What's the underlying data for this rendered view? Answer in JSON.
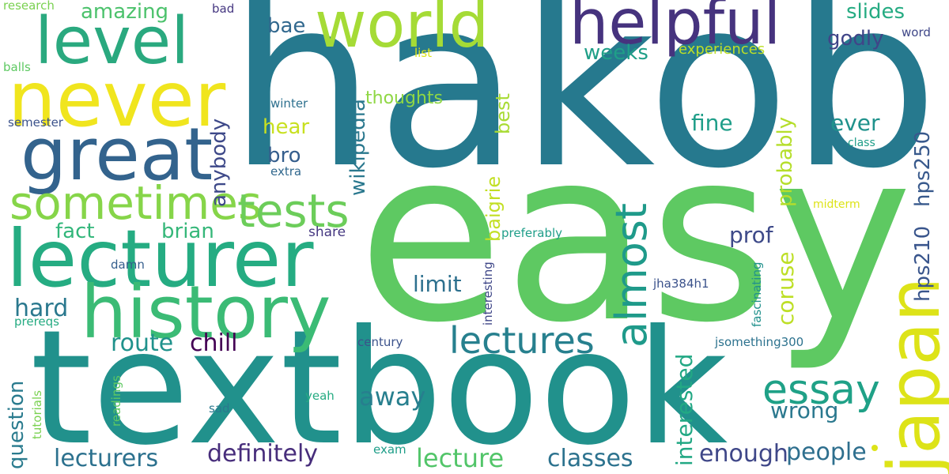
{
  "words": [
    {
      "text": "hakob",
      "color": "#26798e",
      "weight": 1.0
    },
    {
      "text": "easy",
      "color": "#5ec962",
      "weight": 0.92
    },
    {
      "text": "textbook",
      "color": "#21918c",
      "weight": 0.75
    },
    {
      "text": "lecturer",
      "color": "#25ac82",
      "weight": 0.4
    },
    {
      "text": "history",
      "color": "#3bbb75",
      "weight": 0.38
    },
    {
      "text": "never",
      "color": "#f0e51e",
      "weight": 0.4
    },
    {
      "text": "great",
      "color": "#33638d",
      "weight": 0.38
    },
    {
      "text": "japan",
      "color": "#dde318",
      "weight": 0.36
    },
    {
      "text": "level",
      "color": "#2aa97f",
      "weight": 0.33
    },
    {
      "text": "world",
      "color": "#a5db36",
      "weight": 0.32
    },
    {
      "text": "helpful",
      "color": "#46337e",
      "weight": 0.32
    },
    {
      "text": "sometimes",
      "color": "#86d549",
      "weight": 0.25
    },
    {
      "text": "tests",
      "color": "#6ccd5a",
      "weight": 0.25
    },
    {
      "text": "essay",
      "color": "#1fa187",
      "weight": 0.22
    },
    {
      "text": "almost",
      "color": "#1f9a8a",
      "weight": 0.22
    },
    {
      "text": "lectures",
      "color": "#27808e",
      "weight": 0.2
    },
    {
      "text": "interested",
      "color": "#22a884",
      "weight": 0.15
    },
    {
      "text": "enough",
      "color": "#3f4788",
      "weight": 0.15
    },
    {
      "text": "people",
      "color": "#2e6f8e",
      "weight": 0.15
    },
    {
      "text": "wrong",
      "color": "#2a788e",
      "weight": 0.15
    },
    {
      "text": "classes",
      "color": "#2c728e",
      "weight": 0.15
    },
    {
      "text": "lecture",
      "color": "#52c569",
      "weight": 0.15
    },
    {
      "text": "away",
      "color": "#277f8e",
      "weight": 0.15
    },
    {
      "text": "definitely",
      "color": "#472d7b",
      "weight": 0.15
    },
    {
      "text": "lecturers",
      "color": "#2c718e",
      "weight": 0.15
    },
    {
      "text": "question",
      "color": "#2a7b8e",
      "weight": 0.15
    },
    {
      "text": "hard",
      "color": "#2a788e",
      "weight": 0.15
    },
    {
      "text": "route",
      "color": "#20928c",
      "weight": 0.15
    },
    {
      "text": "chill",
      "color": "#440154",
      "weight": 0.15
    },
    {
      "text": "fact",
      "color": "#32b67a",
      "weight": 0.15
    },
    {
      "text": "brian",
      "color": "#35b779",
      "weight": 0.15
    },
    {
      "text": "limit",
      "color": "#2d708e",
      "weight": 0.15
    },
    {
      "text": "prof",
      "color": "#3e4a89",
      "weight": 0.15
    },
    {
      "text": "coruse",
      "color": "#bddf26",
      "weight": 0.15
    },
    {
      "text": "hps210",
      "color": "#39558c",
      "weight": 0.15
    },
    {
      "text": "hps250",
      "color": "#38598c",
      "weight": 0.15
    },
    {
      "text": "probably",
      "color": "#b5de2b",
      "weight": 0.15
    },
    {
      "text": "fine",
      "color": "#1f9e89",
      "weight": 0.15
    },
    {
      "text": "ever",
      "color": "#20928c",
      "weight": 0.15
    },
    {
      "text": "slides",
      "color": "#25ab82",
      "weight": 0.15
    },
    {
      "text": "godly",
      "color": "#404588",
      "weight": 0.15
    },
    {
      "text": "weeks",
      "color": "#1f9f88",
      "weight": 0.15
    },
    {
      "text": "amazing",
      "color": "#4cc26c",
      "weight": 0.15
    },
    {
      "text": "bae",
      "color": "#31688e",
      "weight": 0.15
    },
    {
      "text": "hear",
      "color": "#c8e020",
      "weight": 0.15
    },
    {
      "text": "bro",
      "color": "#355e8d",
      "weight": 0.15
    },
    {
      "text": "anybody",
      "color": "#3e4989",
      "weight": 0.15
    },
    {
      "text": "wikipedia",
      "color": "#2a788e",
      "weight": 0.15
    },
    {
      "text": "baigrie",
      "color": "#c2df23",
      "weight": 0.15
    },
    {
      "text": "best",
      "color": "#a8db34",
      "weight": 0.15
    },
    {
      "text": "thoughts",
      "color": "#8fd744",
      "weight": 0.15
    },
    {
      "text": "experiences",
      "color": "#bddf26",
      "weight": 0.1
    },
    {
      "text": "word",
      "color": "#3f4788",
      "weight": 0.1
    },
    {
      "text": "research",
      "color": "#7ad151",
      "weight": 0.1
    },
    {
      "text": "bad",
      "color": "#453781",
      "weight": 0.1
    },
    {
      "text": "balls",
      "color": "#5ec962",
      "weight": 0.1
    },
    {
      "text": "list",
      "color": "#dde318",
      "weight": 0.1
    },
    {
      "text": "winter",
      "color": "#2d708e",
      "weight": 0.1
    },
    {
      "text": "semester",
      "color": "#3b528b",
      "weight": 0.1
    },
    {
      "text": "class",
      "color": "#1f9e89",
      "weight": 0.1
    },
    {
      "text": "extra",
      "color": "#31688e",
      "weight": 0.1
    },
    {
      "text": "share",
      "color": "#453781",
      "weight": 0.1
    },
    {
      "text": "midterm",
      "color": "#dde318",
      "weight": 0.1
    },
    {
      "text": "preferably",
      "color": "#1f9e89",
      "weight": 0.1
    },
    {
      "text": "damn",
      "color": "#355f8d",
      "weight": 0.1
    },
    {
      "text": "prereqs",
      "color": "#25ab82",
      "weight": 0.1
    },
    {
      "text": "interesting",
      "color": "#3f4788",
      "weight": 0.1
    },
    {
      "text": "fascinating",
      "color": "#21918c",
      "weight": 0.1
    },
    {
      "text": "jha384h1",
      "color": "#3b528b",
      "weight": 0.1
    },
    {
      "text": "century",
      "color": "#3b528b",
      "weight": 0.1
    },
    {
      "text": "jsomething300",
      "color": "#2c728e",
      "weight": 0.1
    },
    {
      "text": "tutorials",
      "color": "#7ad151",
      "weight": 0.1
    },
    {
      "text": "readings",
      "color": "#5ec962",
      "weight": 0.1
    },
    {
      "text": "yeah",
      "color": "#25ab82",
      "weight": 0.1
    },
    {
      "text": "sad",
      "color": "#2a788e",
      "weight": 0.1
    },
    {
      "text": "exam",
      "color": "#1f9e89",
      "weight": 0.1
    }
  ]
}
